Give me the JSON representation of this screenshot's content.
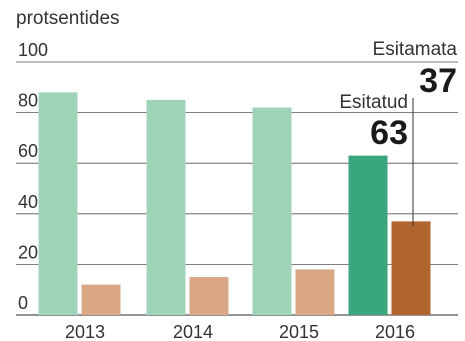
{
  "chart_data": {
    "type": "bar",
    "unit_label": "protsentides",
    "categories": [
      "2013",
      "2014",
      "2015",
      "2016"
    ],
    "series": [
      {
        "name": "Esitatud",
        "values": [
          88,
          85,
          82,
          63
        ]
      },
      {
        "name": "Esitamata",
        "values": [
          12,
          15,
          18,
          37
        ]
      }
    ],
    "ylim": [
      0,
      100
    ],
    "yticks": [
      0,
      20,
      40,
      60,
      80,
      100
    ],
    "grid": true,
    "legend": "direct labels on 2016 bars",
    "annotations": [
      {
        "series": "Esitatud",
        "label": "Esitatud",
        "value": "63"
      },
      {
        "series": "Esitamata",
        "label": "Esitamata",
        "value": "37"
      }
    ]
  },
  "colors": {
    "esitatud_light": "#9fd4b8",
    "esitatud_dark": "#3aa67b",
    "esitamata_light": "#d9a784",
    "esitamata_dark": "#b0652e",
    "title": "#2aa677",
    "gridline": "#555555",
    "text": "#333333"
  }
}
